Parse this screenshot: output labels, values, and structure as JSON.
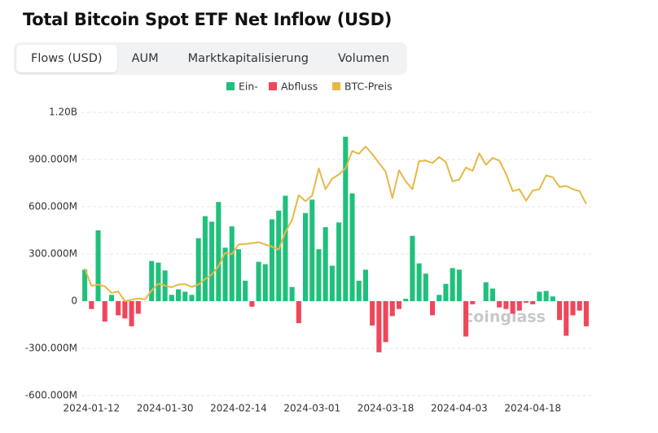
{
  "chart_data": {
    "type": "bar",
    "title": "Total Bitcoin Spot ETF Net Inflow (USD)",
    "tabs": [
      "Flows (USD)",
      "AUM",
      "Marktkapitalisierung",
      "Volumen"
    ],
    "active_tab": 0,
    "watermark": "coinglass",
    "bar_legend": [
      {
        "name": "Ein-",
        "color": "#20c07c"
      },
      {
        "name": "Abfluss",
        "color": "#f0465c"
      }
    ],
    "categories": [
      null,
      "2024-01-12",
      null,
      null,
      null,
      null,
      null,
      null,
      null,
      null,
      null,
      null,
      "2024-01-30",
      null,
      null,
      null,
      null,
      null,
      null,
      null,
      null,
      null,
      null,
      "2024-02-14",
      null,
      null,
      null,
      null,
      null,
      null,
      null,
      null,
      null,
      null,
      "2024-03-01",
      null,
      null,
      null,
      null,
      null,
      null,
      null,
      null,
      null,
      null,
      "2024-03-18",
      null,
      null,
      null,
      null,
      null,
      null,
      null,
      null,
      null,
      null,
      "2024-04-03",
      null,
      null,
      null,
      null,
      null,
      null,
      null,
      null,
      null,
      null,
      "2024-04-18",
      null,
      null,
      null,
      null,
      null,
      null,
      null,
      null
    ],
    "values": [
      200000000,
      -50000000,
      450000000,
      -130000000,
      40000000,
      -90000000,
      -110000000,
      -160000000,
      -80000000,
      0,
      255000000,
      245000000,
      195000000,
      40000000,
      75000000,
      60000000,
      40000000,
      400000000,
      540000000,
      505000000,
      630000000,
      340000000,
      475000000,
      330000000,
      130000000,
      -35000000,
      250000000,
      235000000,
      520000000,
      575000000,
      670000000,
      90000000,
      -140000000,
      560000000,
      645000000,
      330000000,
      470000000,
      225000000,
      500000000,
      1045000000,
      685000000,
      130000000,
      200000000,
      -155000000,
      -325000000,
      -260000000,
      -95000000,
      -50000000,
      15000000,
      415000000,
      240000000,
      175000000,
      -90000000,
      40000000,
      110000000,
      210000000,
      200000000,
      -225000000,
      -20000000,
      0,
      120000000,
      80000000,
      -40000000,
      -50000000,
      -80000000,
      -60000000,
      -10000000,
      -20000000,
      60000000,
      65000000,
      30000000,
      -120000000,
      -220000000,
      -90000000,
      -60000000,
      -160000000
    ],
    "series": [
      {
        "name": "BTC-Preis",
        "color": "#e6b846",
        "axis": "y2",
        "type": "line",
        "values": [
          46600,
          42800,
          43100,
          42700,
          41300,
          41600,
          39500,
          39800,
          40100,
          39900,
          41800,
          43300,
          42900,
          42500,
          43100,
          43200,
          42600,
          43100,
          44300,
          45300,
          47100,
          50000,
          49700,
          51800,
          51900,
          52100,
          52300,
          51800,
          51300,
          50700,
          54500,
          57100,
          62500,
          61200,
          62400,
          68300,
          63800,
          66100,
          67000,
          68300,
          72100,
          71500,
          73100,
          71400,
          69500,
          67600,
          61900,
          67900,
          65500,
          63800,
          69900,
          70000,
          69500,
          70800,
          69700,
          65500,
          65900,
          68500,
          67800,
          71600,
          69100,
          70600,
          70000,
          67100,
          63400,
          63800,
          61300,
          63500,
          63800,
          66800,
          66400,
          64300,
          64500,
          63800,
          63400,
          60600
        ]
      }
    ],
    "ylim": [
      -600000000,
      1200000000
    ],
    "yticks": [
      {
        "value": -600000000,
        "label": "-600.000M"
      },
      {
        "value": -300000000,
        "label": "-300.000M"
      },
      0,
      {
        "value": 300000000,
        "label": "300.000M"
      },
      {
        "value": 600000000,
        "label": "600.000M"
      },
      {
        "value": 900000000,
        "label": "900.000M"
      },
      {
        "value": 1200000000,
        "label": "1.20B"
      }
    ],
    "y2lim": [
      19000,
      80500
    ],
    "grid": true
  }
}
